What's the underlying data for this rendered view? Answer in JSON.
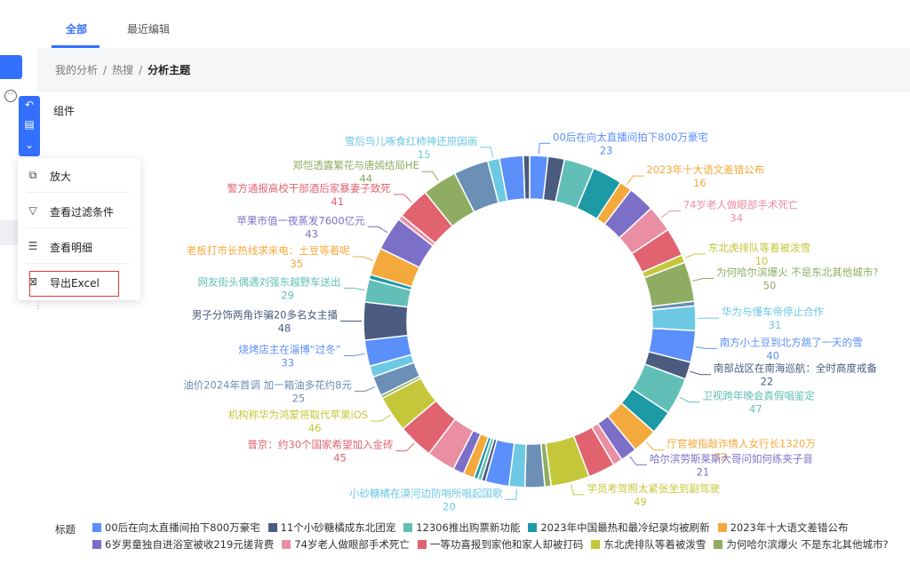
{
  "tabs": [
    {
      "label": "全部",
      "active": true
    },
    {
      "label": "最近编辑",
      "active": false
    }
  ],
  "breadcrumb": [
    "我的分析",
    "热搜",
    "分析主题"
  ],
  "panel": {
    "title": "组件"
  },
  "menu": [
    {
      "icon": "expand-icon",
      "label": "放大"
    },
    {
      "icon": "filter-icon",
      "label": "查看过滤条件"
    },
    {
      "icon": "detail-icon",
      "label": "查看明细"
    },
    {
      "icon": "excel-icon",
      "label": "导出Excel"
    }
  ],
  "toolbar": [
    {
      "icon": "undo-icon"
    },
    {
      "icon": "comment-icon"
    },
    {
      "icon": "chevron-down-icon"
    }
  ],
  "chart_data": {
    "type": "pie",
    "donut": true,
    "legend_title": "标题",
    "slices": [
      {
        "label": "00后在向太直播间拍下800万豪宅",
        "value": 23,
        "color": "#5b8ff9",
        "labeled": true
      },
      {
        "label": "11个小砂糖橘成东北团宠",
        "value": 21,
        "color": "#4b5a7f"
      },
      {
        "label": "12306推出购票新功能",
        "value": 38,
        "color": "#62bfb7"
      },
      {
        "label": "2023年中国最热和最冷纪录均被刷新",
        "value": 38,
        "color": "#1c9aa6"
      },
      {
        "label": "2023年十大语文差错公布",
        "value": 16,
        "color": "#f4a93c",
        "labeled": true
      },
      {
        "label": "6岁男童独自进浴室被收219元搓背费",
        "value": 34,
        "color": "#7c6fc8"
      },
      {
        "label": "74岁老人做眼部手术死亡",
        "value": 34,
        "color": "#ea8fa3",
        "labeled": true
      },
      {
        "label": "一等功喜报到家他和家人却被打码",
        "value": 36,
        "color": "#e0636f"
      },
      {
        "label": "东北虎排队等着被泼雪",
        "value": 10,
        "color": "#c5c73a",
        "labeled": true
      },
      {
        "label": "为何哈尔滨爆火 不是东北其他城市?",
        "value": 50,
        "color": "#8ead62",
        "labeled": true
      },
      {
        "label": "",
        "value": 6,
        "color": "#6b8fb5"
      },
      {
        "label": "华为与懂车帝停止合作",
        "value": 31,
        "color": "#6cc8e3",
        "labeled": true
      },
      {
        "label": "南方小土豆到北方跳了一天的雪",
        "value": 40,
        "color": "#5b8ff9",
        "labeled": true
      },
      {
        "label": "南部战区在南海巡航：全时高度戒备",
        "value": 22,
        "color": "#4b5a7f",
        "labeled": true
      },
      {
        "label": "卫视跨年晚会真假唱鉴定",
        "value": 47,
        "color": "#62bfb7",
        "labeled": true
      },
      {
        "label": "",
        "value": 30,
        "color": "#1c9aa6"
      },
      {
        "label": "厅官被指敲诈情人女行长1320万",
        "value": 32,
        "color": "#f4a93c",
        "labeled": true
      },
      {
        "label": "哈尔滨劳斯莱斯大哥问如何练夹子音",
        "value": 21,
        "color": "#7c6fc8",
        "labeled": true
      },
      {
        "label": "",
        "value": 12,
        "color": "#ea8fa3"
      },
      {
        "label": "",
        "value": 34,
        "color": "#e0636f"
      },
      {
        "label": "学员考驾照太紧张坐到副驾驶",
        "value": 49,
        "color": "#c5c73a",
        "labeled": true
      },
      {
        "label": "",
        "value": 8,
        "color": "#8ead62"
      },
      {
        "label": "",
        "value": 25,
        "color": "#6b8fb5"
      },
      {
        "label": "小砂糖橘在漠河边防哨所唱起国歌",
        "value": 20,
        "color": "#6cc8e3",
        "labeled": true
      },
      {
        "label": "",
        "value": 30,
        "color": "#5b8ff9"
      },
      {
        "label": "",
        "value": 5,
        "color": "#4b5a7f"
      },
      {
        "label": "",
        "value": 5,
        "color": "#62bfb7"
      },
      {
        "label": "",
        "value": 5,
        "color": "#1c9aa6"
      },
      {
        "label": "",
        "value": 14,
        "color": "#f4a93c"
      },
      {
        "label": "",
        "value": 14,
        "color": "#7c6fc8"
      },
      {
        "label": "",
        "value": 36,
        "color": "#ea8fa3"
      },
      {
        "label": "普京：约30个国家希望加入金砖",
        "value": 45,
        "color": "#e0636f",
        "labeled": true
      },
      {
        "label": "机构称华为鸿蒙将取代苹果iOS",
        "value": 46,
        "color": "#c5c73a",
        "labeled": true
      },
      {
        "label": "",
        "value": 4,
        "color": "#8ead62"
      },
      {
        "label": "油价2024年首调 加一箱油多花约8元",
        "value": 25,
        "color": "#6b8fb5",
        "labeled": true
      },
      {
        "label": "",
        "value": 14,
        "color": "#6cc8e3"
      },
      {
        "label": "烧烤店主在淄博“过冬”",
        "value": 33,
        "color": "#5b8ff9",
        "labeled": true
      },
      {
        "label": "男子分饰两角诈骗20多名女主播",
        "value": 48,
        "color": "#4b5a7f",
        "labeled": true
      },
      {
        "label": "网友街头偶遇刘强东越野车送出",
        "value": 29,
        "color": "#62bfb7",
        "labeled": true
      },
      {
        "label": "",
        "value": 6,
        "color": "#1c9aa6"
      },
      {
        "label": "老板打市长热线求来电：土豆等着呢",
        "value": 35,
        "color": "#f4a93c",
        "labeled": true
      },
      {
        "label": "苹果市值一夜蒸发7600亿元",
        "value": 43,
        "color": "#7c6fc8",
        "labeled": true
      },
      {
        "label": "",
        "value": 6,
        "color": "#ea8fa3"
      },
      {
        "label": "警方通报高校干部酒后家暴妻子致死",
        "value": 41,
        "color": "#e0636f",
        "labeled": true
      },
      {
        "label": "郑恺透露繁花与唐嫣结局HE",
        "value": 44,
        "color": "#8ead62",
        "labeled": true
      },
      {
        "label": "",
        "value": 44,
        "color": "#6b8fb5"
      },
      {
        "label": "雪后鸟儿啄食红柿神还原国画",
        "value": 15,
        "color": "#6cc8e3",
        "labeled": true
      },
      {
        "label": "",
        "value": 30,
        "color": "#5b8ff9"
      },
      {
        "label": "",
        "value": 8,
        "color": "#4b5a7f"
      }
    ],
    "legend": [
      [
        {
          "label": "00后在向太直播间拍下800万豪宅",
          "color": "#5b8ff9"
        },
        {
          "label": "11个小砂糖橘成东北团宠",
          "color": "#4b5a7f"
        },
        {
          "label": "12306推出购票新功能",
          "color": "#62bfb7"
        },
        {
          "label": "2023年中国最热和最冷纪录均被刷新",
          "color": "#1c9aa6"
        },
        {
          "label": "2023年十大语文差错公布",
          "color": "#f4a93c"
        }
      ],
      [
        {
          "label": "6岁男童独自进浴室被收219元搓背费",
          "color": "#7c6fc8"
        },
        {
          "label": "74岁老人做眼部手术死亡",
          "color": "#ea8fa3"
        },
        {
          "label": "一等功喜报到家他和家人却被打码",
          "color": "#e0636f"
        },
        {
          "label": "东北虎排队等着被泼雪",
          "color": "#c5c73a"
        },
        {
          "label": "为何哈尔滨爆火 不是东北其他城市?",
          "color": "#8ead62"
        }
      ]
    ]
  }
}
